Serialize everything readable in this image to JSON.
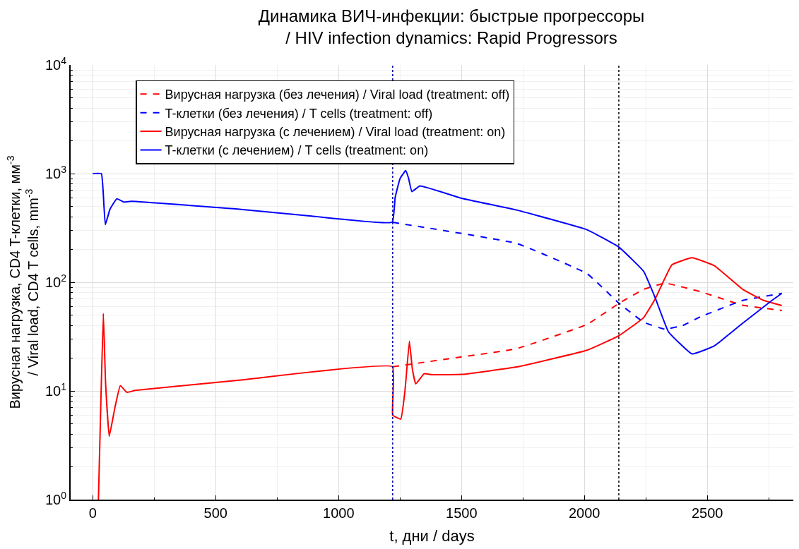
{
  "chart_data": {
    "type": "line",
    "title": "Динамика ВИЧ-инфекции: быстрые прогрессоры\n/ HIV infection dynamics: Rapid Progressors",
    "xlabel": "t, дни / days",
    "ylabel": "Вирусная нагрузка, CD4 T-клетки, мм$^{-3}$\n/ Viral load, CD4 T cells, mm$^{-3}$",
    "series": [
      {
        "name": "Вирусная нагрузка (без лечения) / Viral load (treatment: off)",
        "color": "#ff0000",
        "line_style": "dashed",
        "x": [
          1220,
          1437,
          1724,
          2011,
          2141,
          2241,
          2328,
          2471,
          2644,
          2803
        ],
        "values": [
          16.7,
          19.6,
          24.5,
          41,
          64,
          86,
          98,
          82,
          61.5,
          55
        ]
      },
      {
        "name": "T-клетки (без лечения) / T cells (treatment: off)",
        "color": "#0000ff",
        "line_style": "dashed",
        "x": [
          1220,
          1437,
          1724,
          2011,
          2141,
          2241,
          2328,
          2400,
          2471,
          2644,
          2803
        ],
        "values": [
          356,
          297,
          228,
          120,
          64,
          43,
          37,
          40,
          48,
          68,
          79
        ]
      },
      {
        "name": "Вирусная нагрузка (с лечением) / Viral load (treatment: on)",
        "color": "#ff0000",
        "line_style": "solid",
        "x": [
          23,
          33,
          43,
          52,
          67,
          90,
          112,
          139,
          172,
          603,
          1219,
          1220,
          1253,
          1270,
          1288,
          1300,
          1314,
          1348,
          1379,
          1503,
          1724,
          2011,
          2141,
          2241,
          2289,
          2356,
          2438,
          2529,
          2644,
          2730,
          2803
        ],
        "values": [
          1,
          8,
          51.6,
          12,
          3.82,
          7,
          11.2,
          9.7,
          10.1,
          12.6,
          16.7,
          6.0,
          5.5,
          10,
          28.7,
          16,
          11.6,
          14.4,
          14.1,
          14.2,
          16.6,
          23.7,
          32.3,
          47.3,
          71,
          145,
          168,
          142,
          86,
          68,
          61
        ]
      },
      {
        "name": "T-клетки (с лечением) / T cells (treatment: on)",
        "color": "#0000ff",
        "line_style": "solid",
        "x": [
          0,
          35,
          42,
          51,
          70,
          98,
          126,
          158,
          603,
          891,
          1218,
          1230,
          1250,
          1273,
          1285,
          1298,
          1331,
          1503,
          1724,
          2011,
          2141,
          2241,
          2289,
          2342,
          2438,
          2529,
          2644,
          2759,
          2803
        ],
        "values": [
          1000,
          1000,
          700,
          339,
          470,
          587,
          548,
          556,
          469,
          406,
          357,
          600,
          900,
          1064,
          900,
          683,
          770,
          591,
          462,
          304,
          210,
          126,
          71,
          35,
          21.9,
          26,
          42,
          67,
          79
        ]
      }
    ],
    "xlim": [
      -90,
      2850
    ],
    "xticks": [
      0,
      500,
      1000,
      1500,
      2000,
      2500
    ],
    "ylim": [
      1,
      10000
    ],
    "log": true,
    "yticks": [
      {
        "value": 1,
        "label": "10$^{0}$"
      },
      {
        "value": 10,
        "label": "10$^{1}$"
      },
      {
        "value": 100,
        "label": "10$^{2}$"
      },
      {
        "value": 1000,
        "label": "10$^{3}$"
      },
      {
        "value": 10000,
        "label": "10$^{4}$"
      }
    ],
    "ref_lines": [
      {
        "axis": "x",
        "value": 1220,
        "color": "#0000aa",
        "line_style": "dotted"
      },
      {
        "axis": "x",
        "value": 2140,
        "color": "#000000",
        "line_style": "dotted"
      }
    ],
    "grid": true,
    "legend": "top",
    "marker": "none"
  }
}
